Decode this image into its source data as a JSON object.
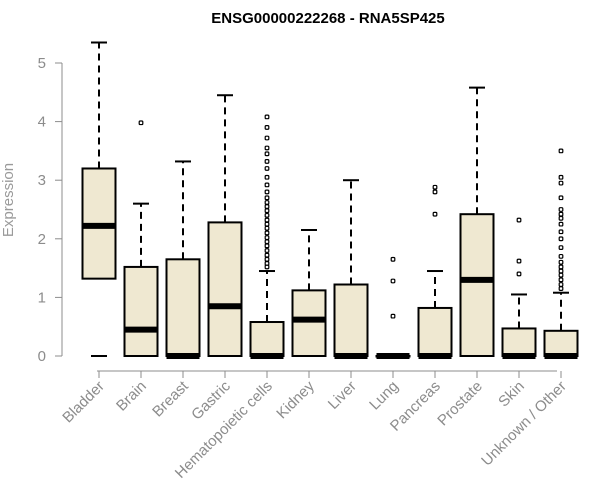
{
  "chart_data": {
    "type": "boxplot",
    "title": "ENSG00000222268 - RNA5SP425",
    "xlabel": "",
    "ylabel": "Expression",
    "ylim": [
      0,
      5
    ],
    "yticks": [
      "0",
      "1",
      "2",
      "3",
      "4",
      "5"
    ],
    "categories": [
      "Bladder",
      "Brain",
      "Breast",
      "Gastric",
      "Hematopoietic cells",
      "Kidney",
      "Liver",
      "Lung",
      "Pancreas",
      "Prostate",
      "Skin",
      "Unknown / Other"
    ],
    "boxes": [
      {
        "name": "Bladder",
        "whisker_low": 0,
        "q1": 1.32,
        "median": 2.22,
        "q3": 3.2,
        "whisker_high": 5.35,
        "outliers": []
      },
      {
        "name": "Brain",
        "whisker_low": 0,
        "q1": 0,
        "median": 0.45,
        "q3": 1.52,
        "whisker_high": 2.6,
        "outliers": [
          3.98
        ]
      },
      {
        "name": "Breast",
        "whisker_low": 0,
        "q1": 0,
        "median": 0,
        "q3": 1.65,
        "whisker_high": 3.32,
        "outliers": []
      },
      {
        "name": "Gastric",
        "whisker_low": 0,
        "q1": 0,
        "median": 0.85,
        "q3": 2.28,
        "whisker_high": 4.45,
        "outliers": []
      },
      {
        "name": "Hematopoietic cells",
        "whisker_low": 0,
        "q1": 0,
        "median": 0,
        "q3": 0.58,
        "whisker_high": 1.45,
        "outliers": [
          4.08,
          3.9,
          3.72,
          3.55,
          3.45,
          3.32,
          3.2,
          3.05,
          2.92,
          2.8,
          2.7,
          2.62,
          2.55,
          2.48,
          2.4,
          2.32,
          2.25,
          2.18,
          2.1,
          2.02,
          1.95,
          1.88,
          1.8,
          1.72,
          1.65,
          1.58,
          1.52
        ]
      },
      {
        "name": "Kidney",
        "whisker_low": 0,
        "q1": 0,
        "median": 0.62,
        "q3": 1.12,
        "whisker_high": 2.15,
        "outliers": []
      },
      {
        "name": "Liver",
        "whisker_low": 0,
        "q1": 0,
        "median": 0,
        "q3": 1.22,
        "whisker_high": 3.0,
        "outliers": []
      },
      {
        "name": "Lung",
        "whisker_low": 0,
        "q1": 0,
        "median": 0,
        "q3": 0,
        "whisker_high": 0,
        "outliers": [
          1.65,
          1.28,
          0.68
        ]
      },
      {
        "name": "Pancreas",
        "whisker_low": 0,
        "q1": 0,
        "median": 0,
        "q3": 0.82,
        "whisker_high": 1.45,
        "outliers": [
          2.88,
          2.8,
          2.42
        ]
      },
      {
        "name": "Prostate",
        "whisker_low": 0,
        "q1": 0,
        "median": 1.3,
        "q3": 2.42,
        "whisker_high": 4.58,
        "outliers": []
      },
      {
        "name": "Skin",
        "whisker_low": 0,
        "q1": 0,
        "median": 0,
        "q3": 0.47,
        "whisker_high": 1.05,
        "outliers": [
          2.32,
          1.62,
          1.4
        ]
      },
      {
        "name": "Unknown / Other",
        "whisker_low": 0,
        "q1": 0,
        "median": 0,
        "q3": 0.43,
        "whisker_high": 1.08,
        "outliers": [
          3.5,
          3.05,
          2.95,
          2.7,
          2.5,
          2.42,
          2.35,
          2.25,
          2.12,
          2.0,
          1.85,
          1.7,
          1.6,
          1.52,
          1.45,
          1.38,
          1.3,
          1.22,
          1.15
        ]
      }
    ]
  }
}
